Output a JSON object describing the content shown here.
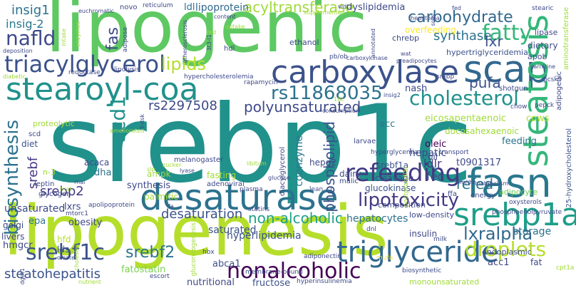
{
  "words": [
    {
      "text": "srebp1c",
      "color": "#21918c"
    },
    {
      "text": "lipogenic",
      "color": "#5ec962"
    },
    {
      "text": "lipogenesis",
      "color": "#b5de2b"
    },
    {
      "text": "desaturase",
      "color": "#2c728e"
    },
    {
      "text": "stearoyl-coa",
      "color": "#21918c"
    },
    {
      "text": "carboxylase",
      "color": "#3b528b"
    },
    {
      "text": "scap",
      "color": "#31688e"
    },
    {
      "text": "fasn",
      "color": "#2a788e"
    },
    {
      "text": "srebp1a",
      "color": "#1f9e89"
    },
    {
      "text": "steatosis",
      "color": "#35b779"
    },
    {
      "text": "triglyceride",
      "color": "#31688e"
    },
    {
      "text": "refeeding",
      "color": "#443983"
    },
    {
      "text": "triacylglycerol",
      "color": "#3b528b"
    },
    {
      "text": "nonalcoholic",
      "color": "#440154"
    },
    {
      "text": "fatty",
      "color": "#35b779"
    },
    {
      "text": "rs11868035",
      "color": "#2c728e"
    },
    {
      "text": "cholesterol",
      "color": "#21918c"
    },
    {
      "text": "srebf1c",
      "color": "#3b528b"
    },
    {
      "text": "lipotoxicity",
      "color": "#443983"
    },
    {
      "text": "lxralpha",
      "color": "#31688e"
    },
    {
      "text": "droplets",
      "color": "#b5de2b"
    },
    {
      "text": "biosynthesis",
      "color": "#2c728e"
    },
    {
      "text": "nafld",
      "color": "#3e4989"
    },
    {
      "text": "lipids",
      "color": "#b5de2b"
    },
    {
      "text": "carbohydrate",
      "color": "#31688e"
    },
    {
      "text": "scd1",
      "color": "#21918c"
    },
    {
      "text": "polyunsaturated",
      "color": "#3e4989"
    },
    {
      "text": "acyltransferase",
      "color": "#a0da39"
    },
    {
      "text": "non-alcoholic",
      "color": "#1fa187"
    },
    {
      "text": "srebf2",
      "color": "#2c728e"
    },
    {
      "text": "steatohepatitis",
      "color": "#3b528b"
    },
    {
      "text": "synthase",
      "color": "#2c728e"
    },
    {
      "text": "fas",
      "color": "#3e4989"
    },
    {
      "text": "phospholipid",
      "color": "#3b528b"
    },
    {
      "text": "insig1",
      "color": "#2c728e"
    },
    {
      "text": "srebp2",
      "color": "#443983"
    },
    {
      "text": "desaturation",
      "color": "#3b528b"
    },
    {
      "text": "rs2297508",
      "color": "#3e4989"
    },
    {
      "text": "insig-2",
      "color": "#2a788e"
    },
    {
      "text": "refed",
      "color": "#2c728e"
    },
    {
      "text": "pufa",
      "color": "#3b528b"
    },
    {
      "text": "lxr",
      "color": "#3b528b"
    },
    {
      "text": "srebf",
      "color": "#443983"
    },
    {
      "text": "hyperlipidemia",
      "color": "#3b528b"
    },
    {
      "text": "ldlr",
      "color": "#443983"
    },
    {
      "text": "lipoprotein",
      "color": "#31688e"
    },
    {
      "text": "fed",
      "color": "#3e4989"
    },
    {
      "text": "hepatocytes",
      "color": "#2c728e"
    },
    {
      "text": "unsaturated",
      "color": "#3e4989"
    },
    {
      "text": "saturated",
      "color": "#3b528b"
    },
    {
      "text": "hepatic",
      "color": "#3e4989"
    },
    {
      "text": "storage",
      "color": "#2c728e"
    },
    {
      "text": "coenzyme",
      "color": "#2a788e"
    },
    {
      "text": "eicosapentaenoic",
      "color": "#a0da39"
    },
    {
      "text": "nutritional",
      "color": "#3e4989"
    },
    {
      "text": "fructose",
      "color": "#3b528b"
    },
    {
      "text": "overfeeding",
      "color": "#fde725"
    },
    {
      "text": "acc1",
      "color": "#3e4989"
    },
    {
      "text": "abca1",
      "color": "#3b528b"
    },
    {
      "text": "oleic",
      "color": "#440154"
    },
    {
      "text": "fatostatin",
      "color": "#7ad151"
    },
    {
      "text": "ldl",
      "color": "#2c728e"
    },
    {
      "text": "dyslipidemia",
      "color": "#3e4989"
    },
    {
      "text": "nash",
      "color": "#3e4989"
    },
    {
      "text": "acc",
      "color": "#2a788e"
    },
    {
      "text": "docosahexaenoic",
      "color": "#a0da39"
    },
    {
      "text": "synthesis",
      "color": "#3e4989"
    },
    {
      "text": "feeding",
      "color": "#2c728e"
    },
    {
      "text": "t0901317",
      "color": "#3e4989"
    },
    {
      "text": "hmgcr",
      "color": "#3e4989"
    },
    {
      "text": "epa",
      "color": "#2c728e"
    },
    {
      "text": "hypertriglyceridemia",
      "color": "#3b528b"
    },
    {
      "text": "dietary",
      "color": "#3e4989"
    },
    {
      "text": "cows",
      "color": "#b5de2b"
    },
    {
      "text": "obesity",
      "color": "#3e4989"
    },
    {
      "text": "dha",
      "color": "#2c728e"
    },
    {
      "text": "palmitic",
      "color": "#a0da39"
    },
    {
      "text": "fasting",
      "color": "#a0da39"
    },
    {
      "text": "lxrs",
      "color": "#3e4989"
    },
    {
      "text": "golgi",
      "color": "#3e4989"
    },
    {
      "text": "hfd",
      "color": "#b5de2b"
    },
    {
      "text": "livers",
      "color": "#3e4989"
    },
    {
      "text": "lds",
      "color": "#3b528b"
    },
    {
      "text": "diet",
      "color": "#3b528b"
    },
    {
      "text": "acaca",
      "color": "#3e4989"
    },
    {
      "text": "srebf1a",
      "color": "#3b528b"
    },
    {
      "text": "cleavage",
      "color": "#3e4989"
    },
    {
      "text": "glucokinase",
      "color": "#3b528b"
    },
    {
      "text": "hepg2",
      "color": "#3e4989"
    },
    {
      "text": "dairy",
      "color": "#3e4989"
    },
    {
      "text": "ampk",
      "color": "#a0da39"
    },
    {
      "text": "adipocyte",
      "color": "#6ccd5a"
    },
    {
      "text": "oil",
      "color": "#3e4989"
    },
    {
      "text": "insulin",
      "color": "#3e4989"
    },
    {
      "text": "endoplasmic",
      "color": "#3e4989"
    },
    {
      "text": "lipase",
      "color": "#3e4989"
    },
    {
      "text": "composition",
      "color": "#3e4989"
    },
    {
      "text": "low-density",
      "color": "#3e4989"
    },
    {
      "text": "ethanol",
      "color": "#3e4989"
    },
    {
      "text": "chrebp",
      "color": "#3e4989"
    },
    {
      "text": "apob",
      "color": "#3e4989"
    },
    {
      "text": "proteolytic",
      "color": "#a0da39"
    },
    {
      "text": "n-3",
      "color": "#a0da39"
    },
    {
      "text": "monounsaturated",
      "color": "#a0da39"
    },
    {
      "text": "aminotransferase",
      "color": "#a0da39"
    },
    {
      "text": "25-hydroxycholesterol",
      "color": "#3b528b"
    },
    {
      "text": "adipogenic",
      "color": "#3e4989"
    },
    {
      "text": "pcsk9",
      "color": "#3e4989"
    },
    {
      "text": "pepck",
      "color": "#3e4989"
    },
    {
      "text": "shotgun",
      "color": "#3e4989"
    },
    {
      "text": "chow",
      "color": "#3e4989"
    },
    {
      "text": "fat",
      "color": "#3e4989"
    },
    {
      "text": "cpt1a",
      "color": "#a0da39"
    },
    {
      "text": "leptin",
      "color": "#3e4989"
    },
    {
      "text": "glycogen",
      "color": "#3e4989"
    },
    {
      "text": "scd",
      "color": "#3e4989"
    },
    {
      "text": "melanogaster",
      "color": "#3e4989"
    },
    {
      "text": "diacylglycerol",
      "color": "#3e4989"
    },
    {
      "text": "adenoviral",
      "color": "#3e4989"
    },
    {
      "text": "apolipoprotein",
      "color": "#3e4989"
    },
    {
      "text": "statins",
      "color": "#3e4989"
    },
    {
      "text": "mtorc1",
      "color": "#3e4989"
    },
    {
      "text": "malic",
      "color": "#3e4989"
    },
    {
      "text": "larvae",
      "color": "#3e4989"
    },
    {
      "text": "energy",
      "color": "#3e4989"
    },
    {
      "text": "ffa",
      "color": "#3e4989"
    },
    {
      "text": "oxysterols",
      "color": "#3e4989"
    },
    {
      "text": "phosphoenolpyruvate",
      "color": "#3e4989"
    },
    {
      "text": "dnl",
      "color": "#3e4989"
    },
    {
      "text": "hyperinsulinemia",
      "color": "#3e4989"
    },
    {
      "text": "adiponectin",
      "color": "#3e4989"
    },
    {
      "text": "biosynthetic",
      "color": "#3e4989"
    },
    {
      "text": "membrane-bound",
      "color": "#3e4989"
    },
    {
      "text": "gluconeogenesis",
      "color": "#a0da39"
    },
    {
      "text": "escort",
      "color": "#3e4989"
    },
    {
      "text": "hbx",
      "color": "#3e4989"
    },
    {
      "text": "plasma",
      "color": "#3e4989"
    },
    {
      "text": "lean",
      "color": "#3e4989"
    },
    {
      "text": "mufa",
      "color": "#fde725"
    },
    {
      "text": "milk",
      "color": "#3e4989"
    },
    {
      "text": "hyperglycemia",
      "color": "#3e4989"
    },
    {
      "text": "postprandial",
      "color": "#a0da39"
    },
    {
      "text": "transport",
      "color": "#3e4989"
    },
    {
      "text": "lipolysis",
      "color": "#3e4989"
    },
    {
      "text": "reductase",
      "color": "#3e4989"
    },
    {
      "text": "hypercholesterolemia",
      "color": "#3e4989"
    },
    {
      "text": "rapamycin",
      "color": "#3e4989"
    },
    {
      "text": "adipose",
      "color": "#3e4989"
    },
    {
      "text": "novo",
      "color": "#3e4989"
    },
    {
      "text": "reticulum",
      "color": "#3e4989"
    },
    {
      "text": "euchromatic",
      "color": "#3e4989"
    },
    {
      "text": "content",
      "color": "#3e4989"
    },
    {
      "text": "uptake",
      "color": "#a0da39"
    },
    {
      "text": "hdl",
      "color": "#3e4989"
    },
    {
      "text": "vldl",
      "color": "#3e4989"
    },
    {
      "text": "supplemented",
      "color": "#a0da39"
    },
    {
      "text": "hepatoma",
      "color": "#3e4989"
    },
    {
      "text": "stearic",
      "color": "#3e4989"
    },
    {
      "text": "carnitine",
      "color": "#3e4989"
    },
    {
      "text": "srebp",
      "color": "#3e4989"
    },
    {
      "text": "wat",
      "color": "#3e4989"
    },
    {
      "text": "preadipocytes",
      "color": "#3e4989"
    },
    {
      "text": "pb/ob",
      "color": "#3e4989"
    },
    {
      "text": "carboxykinase",
      "color": "#3e4989"
    },
    {
      "text": "annotated",
      "color": "#3e4989"
    },
    {
      "text": "sres",
      "color": "#3e4989"
    },
    {
      "text": "fed",
      "color": "#3e4989"
    },
    {
      "text": "zucker",
      "color": "#a0da39"
    },
    {
      "text": "lyase",
      "color": "#3e4989"
    },
    {
      "text": "libitum",
      "color": "#a0da39"
    },
    {
      "text": "glucose",
      "color": "#3e4989"
    },
    {
      "text": "consumption",
      "color": "#3e4989"
    },
    {
      "text": "ameliorated",
      "color": "#a0da39"
    },
    {
      "text": "3t3-l1",
      "color": "#3e4989"
    },
    {
      "text": "rnai",
      "color": "#3e4989"
    },
    {
      "text": "fruit",
      "color": "#a0da39"
    },
    {
      "text": "diabetic",
      "color": "#a0da39"
    },
    {
      "text": "deposition",
      "color": "#3e4989"
    },
    {
      "text": "intake",
      "color": "#a0da39"
    },
    {
      "text": "atherosclerosis",
      "color": "#3e4989"
    },
    {
      "text": "enzymes",
      "color": "#a0da39"
    },
    {
      "text": "red",
      "color": "#a0da39"
    },
    {
      "text": "slp",
      "color": "#a0da39"
    },
    {
      "text": "oleate",
      "color": "#3e4989"
    },
    {
      "text": "metabolism",
      "color": "#3e4989"
    },
    {
      "text": "nutrient",
      "color": "#a0da39"
    },
    {
      "text": "dgat1",
      "color": "#3e4989"
    },
    {
      "text": "3-dsk",
      "color": "#3e4989"
    },
    {
      "text": "cholesterogenic",
      "color": "#a0da39"
    },
    {
      "text": "dm/db",
      "color": "#3e4989"
    },
    {
      "text": "fa",
      "color": "#3e4989"
    },
    {
      "text": "insig2",
      "color": "#3e4989"
    },
    {
      "text": "18c",
      "color": "#a0da39"
    },
    {
      "text": "1",
      "color": "#3e4989"
    }
  ]
}
